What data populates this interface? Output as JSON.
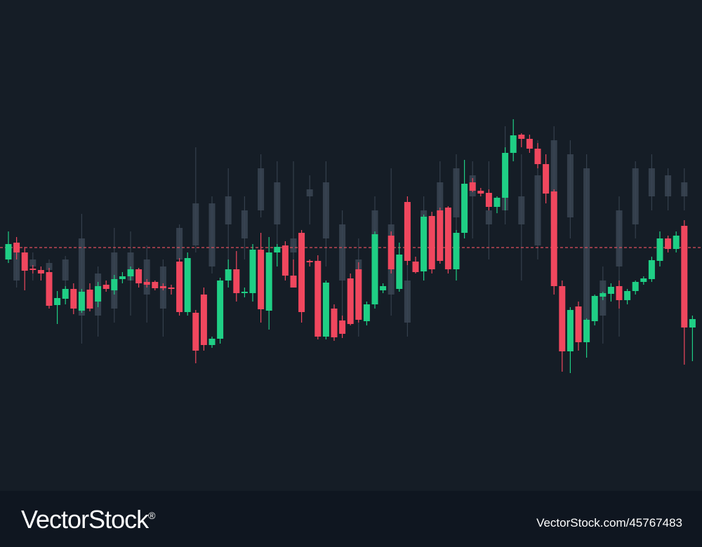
{
  "chart_data": {
    "type": "candlestick",
    "ylim": [
      0,
      700
    ],
    "price_line": 347,
    "price_line_color": "#e0505e",
    "series": [
      {
        "color": "#3a4553",
        "ohlc": [
          [
            340,
            360,
            290,
            300
          ],
          [
            320,
            340,
            300,
            330
          ],
          [
            315,
            330,
            290,
            325
          ],
          [
            300,
            335,
            280,
            330
          ],
          [
            360,
            395,
            210,
            250
          ],
          [
            250,
            320,
            220,
            310
          ],
          [
            340,
            375,
            240,
            260
          ],
          [
            300,
            370,
            250,
            340
          ],
          [
            280,
            350,
            240,
            330
          ],
          [
            260,
            330,
            220,
            320
          ],
          [
            330,
            380,
            320,
            375
          ],
          [
            410,
            490,
            340,
            350
          ],
          [
            320,
            420,
            310,
            410
          ],
          [
            380,
            460,
            300,
            420
          ],
          [
            360,
            420,
            330,
            400
          ],
          [
            460,
            480,
            390,
            400
          ],
          [
            380,
            470,
            340,
            440
          ],
          [
            360,
            470,
            300,
            340
          ],
          [
            420,
            450,
            380,
            430
          ],
          [
            440,
            470,
            320,
            360
          ],
          [
            300,
            400,
            240,
            380
          ],
          [
            260,
            360,
            220,
            330
          ],
          [
            340,
            420,
            300,
            400
          ],
          [
            380,
            460,
            250,
            280
          ],
          [
            300,
            400,
            220,
            240
          ],
          [
            330,
            420,
            300,
            400
          ],
          [
            380,
            470,
            330,
            440
          ],
          [
            390,
            480,
            350,
            460
          ],
          [
            420,
            470,
            360,
            450
          ],
          [
            400,
            470,
            330,
            380
          ],
          [
            450,
            520,
            380,
            400
          ],
          [
            380,
            480,
            300,
            420
          ],
          [
            450,
            500,
            330,
            350
          ],
          [
            500,
            520,
            360,
            380
          ],
          [
            480,
            500,
            360,
            390
          ],
          [
            460,
            480,
            200,
            230
          ],
          [
            250,
            320,
            210,
            300
          ],
          [
            320,
            420,
            220,
            400
          ],
          [
            380,
            470,
            360,
            460
          ],
          [
            460,
            480,
            400,
            420
          ],
          [
            420,
            460,
            400,
            450
          ],
          [
            440,
            460,
            400,
            420
          ]
        ]
      },
      {
        "up_color": "#1fcf85",
        "down_color": "#f0475e",
        "ohlc": [
          [
            330,
            370,
            325,
            352
          ],
          [
            354,
            362,
            330,
            340
          ],
          [
            340,
            348,
            286,
            314
          ],
          [
            317,
            322,
            310,
            316
          ],
          [
            315,
            320,
            300,
            310
          ],
          [
            312,
            318,
            260,
            264
          ],
          [
            265,
            285,
            238,
            275
          ],
          [
            274,
            292,
            266,
            288
          ],
          [
            288,
            296,
            252,
            260
          ],
          [
            257,
            288,
            254,
            284
          ],
          [
            287,
            296,
            256,
            260
          ],
          [
            270,
            298,
            262,
            292
          ],
          [
            294,
            300,
            284,
            288
          ],
          [
            286,
            308,
            280,
            302
          ],
          [
            302,
            312,
            296,
            306
          ],
          [
            306,
            320,
            300,
            316
          ],
          [
            316,
            318,
            290,
            296
          ],
          [
            298,
            302,
            290,
            294
          ],
          [
            298,
            300,
            286,
            289
          ],
          [
            292,
            296,
            286,
            289
          ],
          [
            290,
            294,
            280,
            288
          ],
          [
            327,
            332,
            250,
            255
          ],
          [
            255,
            340,
            250,
            332
          ],
          [
            254,
            258,
            182,
            200
          ],
          [
            280,
            290,
            200,
            208
          ],
          [
            208,
            220,
            204,
            217
          ],
          [
            217,
            304,
            210,
            300
          ],
          [
            300,
            330,
            290,
            316
          ],
          [
            316,
            342,
            270,
            282
          ],
          [
            282,
            290,
            276,
            284
          ],
          [
            282,
            352,
            270,
            344
          ],
          [
            344,
            368,
            240,
            259
          ],
          [
            257,
            362,
            230,
            340
          ],
          [
            340,
            352,
            320,
            348
          ],
          [
            350,
            356,
            300,
            307
          ],
          [
            307,
            330,
            290,
            290
          ],
          [
            368,
            372,
            240,
            255
          ],
          [
            328,
            330,
            320,
            327
          ],
          [
            328,
            336,
            216,
            220
          ],
          [
            220,
            300,
            216,
            297
          ],
          [
            260,
            266,
            214,
            219
          ],
          [
            243,
            250,
            218,
            224
          ],
          [
            303,
            310,
            236,
            238
          ],
          [
            316,
            326,
            240,
            244
          ],
          [
            242,
            270,
            236,
            266
          ],
          [
            266,
            370,
            260,
            366
          ],
          [
            286,
            296,
            282,
            292
          ],
          [
            364,
            370,
            310,
            316
          ],
          [
            288,
            354,
            284,
            337
          ],
          [
            412,
            420,
            322,
            328
          ],
          [
            327,
            334,
            310,
            312
          ],
          [
            313,
            394,
            300,
            391
          ],
          [
            392,
            398,
            310,
            316
          ],
          [
            400,
            404,
            324,
            328
          ],
          [
            404,
            406,
            310,
            316
          ],
          [
            316,
            372,
            300,
            368
          ],
          [
            368,
            472,
            360,
            438
          ],
          [
            440,
            446,
            426,
            428
          ],
          [
            428,
            432,
            420,
            424
          ],
          [
            425,
            430,
            400,
            405
          ],
          [
            405,
            420,
            396,
            418
          ],
          [
            418,
            490,
            400,
            482
          ],
          [
            482,
            530,
            470,
            507
          ],
          [
            508,
            510,
            490,
            502
          ],
          [
            502,
            508,
            482,
            488
          ],
          [
            488,
            496,
            460,
            466
          ],
          [
            466,
            480,
            410,
            424
          ],
          [
            427,
            430,
            280,
            292
          ],
          [
            292,
            300,
            170,
            199
          ],
          [
            199,
            262,
            168,
            258
          ],
          [
            263,
            270,
            200,
            212
          ],
          [
            212,
            246,
            190,
            244
          ],
          [
            242,
            280,
            236,
            278
          ],
          [
            277,
            284,
            272,
            282
          ],
          [
            281,
            296,
            270,
            291
          ],
          [
            292,
            300,
            260,
            272
          ],
          [
            272,
            288,
            266,
            285
          ],
          [
            285,
            300,
            280,
            298
          ],
          [
            298,
            306,
            294,
            303
          ],
          [
            302,
            334,
            298,
            329
          ],
          [
            328,
            370,
            320,
            360
          ],
          [
            360,
            364,
            340,
            345
          ],
          [
            345,
            370,
            340,
            364
          ],
          [
            378,
            386,
            180,
            233
          ],
          [
            233,
            250,
            185,
            245
          ]
        ]
      }
    ]
  },
  "footer": {
    "brand": "VectorStock",
    "mark": "®",
    "id": "VectorStock.com/45767483"
  }
}
